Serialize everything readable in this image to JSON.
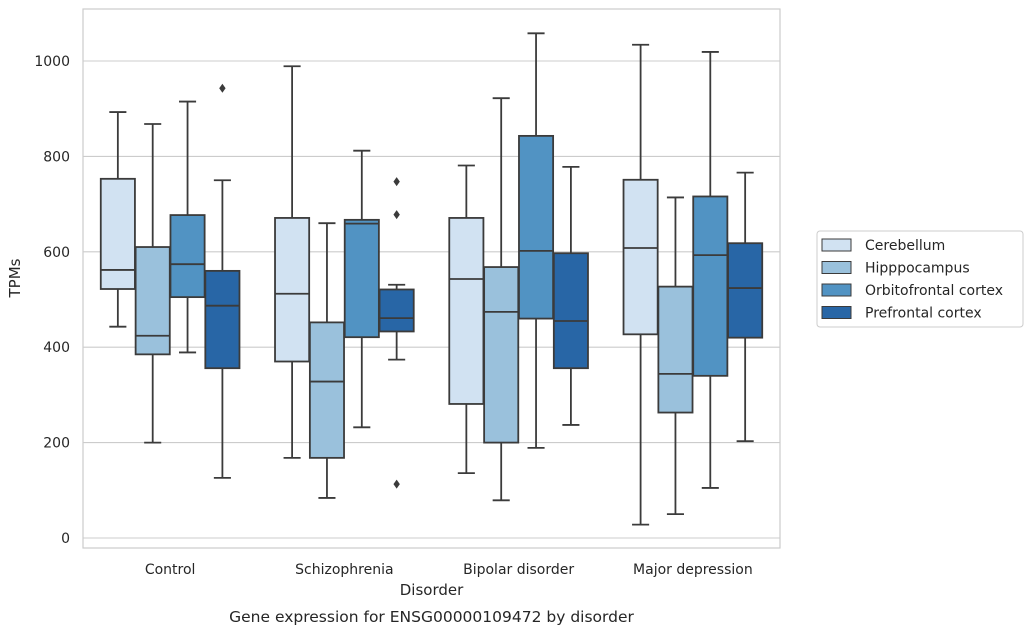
{
  "chart_data": {
    "type": "box",
    "xlabel": "Disorder",
    "ylabel": "TPMs",
    "caption": "Gene expression for ENSG00000109472 by disorder",
    "categories": [
      "Control",
      "Schizophrenia",
      "Bipolar disorder",
      "Major depression"
    ],
    "ylim": [
      -20,
      1110
    ],
    "yticks": [
      0,
      200,
      400,
      600,
      800,
      1000
    ],
    "grid": "horizontal",
    "legend_position": "right",
    "series": [
      {
        "name": "Cerebellum",
        "color": "#d1e2f2",
        "boxes": [
          {
            "whislo": 443,
            "q1": 522,
            "med": 562,
            "q3": 753,
            "whishi": 893,
            "fliers": []
          },
          {
            "whislo": 168,
            "q1": 370,
            "med": 512,
            "q3": 671,
            "whishi": 989,
            "fliers": []
          },
          {
            "whislo": 136,
            "q1": 281,
            "med": 543,
            "q3": 671,
            "whishi": 781,
            "fliers": []
          },
          {
            "whislo": 28,
            "q1": 427,
            "med": 608,
            "q3": 751,
            "whishi": 1034,
            "fliers": []
          }
        ]
      },
      {
        "name": "Hipppocampus",
        "color": "#9ac1dc",
        "boxes": [
          {
            "whislo": 200,
            "q1": 385,
            "med": 424,
            "q3": 610,
            "whishi": 868,
            "fliers": []
          },
          {
            "whislo": 84,
            "q1": 168,
            "med": 328,
            "q3": 452,
            "whishi": 660,
            "fliers": []
          },
          {
            "whislo": 79,
            "q1": 200,
            "med": 474,
            "q3": 568,
            "whishi": 922,
            "fliers": []
          },
          {
            "whislo": 50,
            "q1": 263,
            "med": 344,
            "q3": 527,
            "whishi": 714,
            "fliers": []
          }
        ]
      },
      {
        "name": "Orbitofrontal cortex",
        "color": "#5193c3",
        "boxes": [
          {
            "whislo": 389,
            "q1": 505,
            "med": 574,
            "q3": 677,
            "whishi": 915,
            "fliers": []
          },
          {
            "whislo": 232,
            "q1": 421,
            "med": 659,
            "q3": 667,
            "whishi": 812,
            "fliers": []
          },
          {
            "whislo": 189,
            "q1": 460,
            "med": 602,
            "q3": 843,
            "whishi": 1058,
            "fliers": []
          },
          {
            "whislo": 105,
            "q1": 340,
            "med": 593,
            "q3": 716,
            "whishi": 1019,
            "fliers": []
          }
        ]
      },
      {
        "name": "Prefrontal cortex",
        "color": "#2866a6",
        "boxes": [
          {
            "whislo": 126,
            "q1": 356,
            "med": 487,
            "q3": 560,
            "whishi": 750,
            "fliers": [
              943
            ]
          },
          {
            "whislo": 374,
            "q1": 433,
            "med": 461,
            "q3": 521,
            "whishi": 531,
            "fliers": [
              747,
              678,
              113
            ]
          },
          {
            "whislo": 237,
            "q1": 356,
            "med": 455,
            "q3": 597,
            "whishi": 778,
            "fliers": []
          },
          {
            "whislo": 203,
            "q1": 420,
            "med": 524,
            "q3": 618,
            "whishi": 766,
            "fliers": []
          }
        ]
      }
    ]
  }
}
